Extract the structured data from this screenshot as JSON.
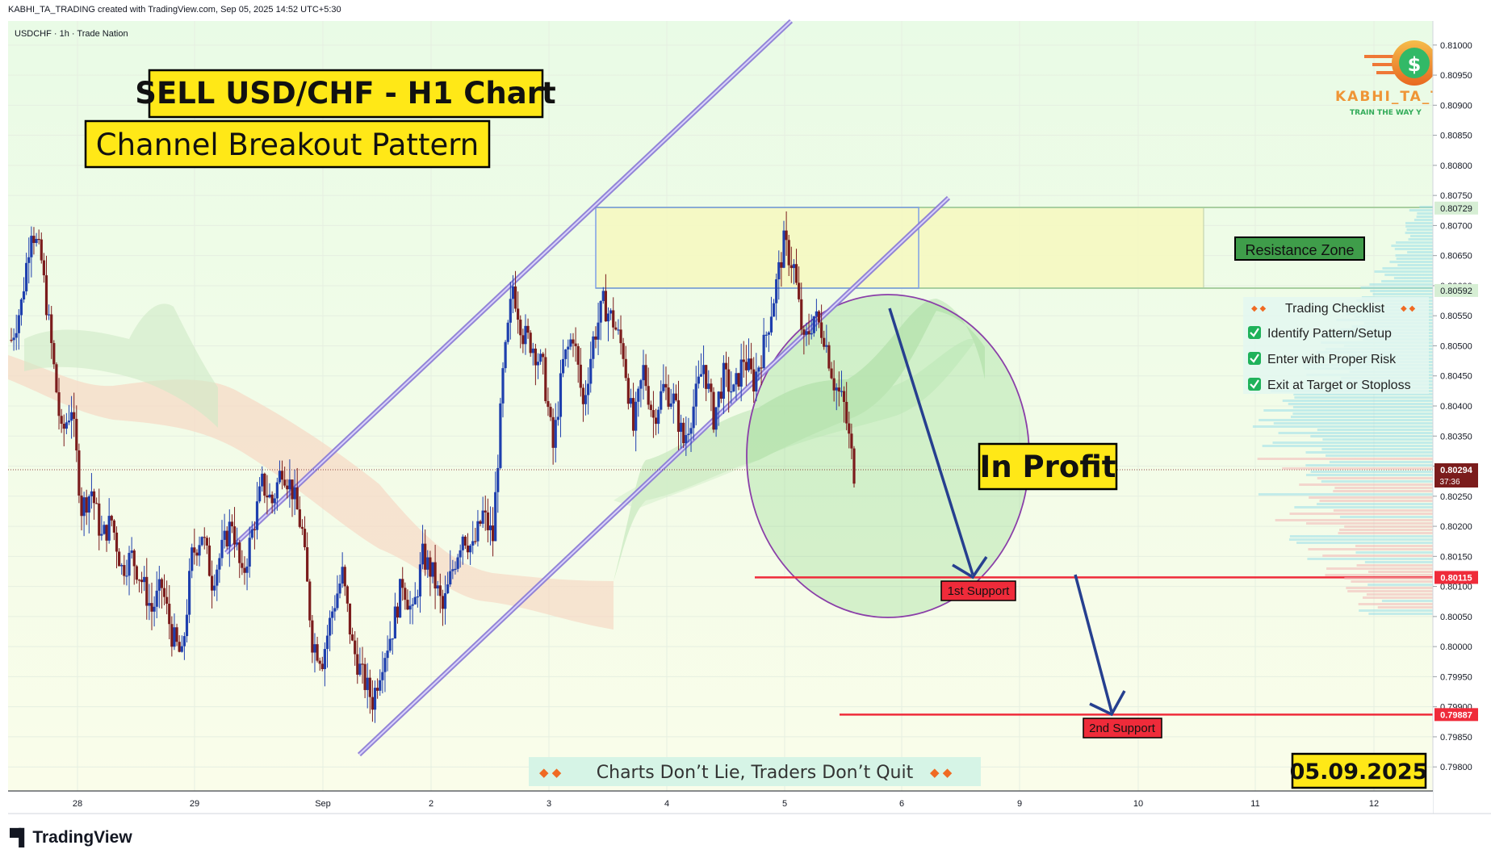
{
  "header": {
    "attribution": "KABHI_TA_TRADING created with TradingView.com, Sep 05, 2025 14:52 UTC+5:30",
    "symbol_line": "USDCHF · 1h · Trade Nation"
  },
  "branding": {
    "tradingview": "TradingView",
    "watermark_name": "KABHI_TA_T",
    "watermark_tag": "TRAIN THE WAY Y",
    "dollar": "$"
  },
  "annotations": {
    "title": "SELL USD/CHF - H1 Chart",
    "subtitle": "Channel Breakout Pattern",
    "in_profit": "In Profit",
    "resistance": "Resistance Zone",
    "support1": "1st Support",
    "support2": "2nd Support",
    "motto": "Charts Don’t Lie, Traders Don’t Quit",
    "date": "05.09.2025"
  },
  "checklist": {
    "title": "Trading Checklist",
    "items": [
      "Identify Pattern/Setup",
      "Enter with Proper Risk",
      "Exit at Target or Stoploss"
    ]
  },
  "colors": {
    "bull": "#1e3fae",
    "bear": "#7b1c1c",
    "support_line": "#ef2b3a",
    "channel": "#8878d6",
    "label_yellow": "#ffe817",
    "resistance_green": "#3f9d4a"
  },
  "chart_data": {
    "type": "candlestick",
    "symbol": "USDCHF",
    "timeframe": "1h",
    "broker": "Trade Nation",
    "x_ticks": [
      "28",
      "29",
      "Sep",
      "2",
      "3",
      "4",
      "5",
      "6",
      "9",
      "10",
      "11",
      "12"
    ],
    "y_ticks": [
      "0.81000",
      "0.80950",
      "0.80900",
      "0.80850",
      "0.80800",
      "0.80750",
      "0.80700",
      "0.80650",
      "0.80600",
      "0.80550",
      "0.80500",
      "0.80450",
      "0.80400",
      "0.80350",
      "0.80300",
      "0.80250",
      "0.80200",
      "0.80150",
      "0.80100",
      "0.80050",
      "0.80000",
      "0.79950",
      "0.79900",
      "0.79850",
      "0.79800"
    ],
    "ylim": [
      0.7976,
      0.8104
    ],
    "price_labels": {
      "current": "0.80294",
      "countdown": "37:36",
      "resistance_top": "0.80729",
      "resistance_bottom": "0.80592",
      "support1": "0.80115",
      "support2": "0.79887"
    },
    "levels": {
      "current": 0.80294,
      "resistance_top": 0.80729,
      "resistance_bottom": 0.80592,
      "support1": 0.80115,
      "support2": 0.79887
    },
    "path_points": [
      0.8051,
      0.8057,
      0.807,
      0.8064,
      0.805,
      0.8035,
      0.804,
      0.8023,
      0.8026,
      0.8018,
      0.8021,
      0.8013,
      0.8015,
      0.8011,
      0.8006,
      0.801,
      0.8002,
      0.7998,
      0.8015,
      0.8019,
      0.8011,
      0.8016,
      0.8021,
      0.8011,
      0.8019,
      0.8027,
      0.8024,
      0.803,
      0.8026,
      0.8019,
      0.8001,
      0.7998,
      0.8006,
      0.8012,
      0.8,
      0.7995,
      0.7991,
      0.7998,
      0.8003,
      0.8011,
      0.8005,
      0.8015,
      0.8012,
      0.8006,
      0.8013,
      0.8019,
      0.8016,
      0.8022,
      0.8018,
      0.8045,
      0.806,
      0.8052,
      0.805,
      0.8046,
      0.8033,
      0.8047,
      0.8052,
      0.804,
      0.8051,
      0.8057,
      0.8054,
      0.8049,
      0.8036,
      0.8046,
      0.8038,
      0.8043,
      0.8041,
      0.8034,
      0.804,
      0.8047,
      0.8038,
      0.8045,
      0.8042,
      0.8048,
      0.8044,
      0.805,
      0.8058,
      0.8067,
      0.8063,
      0.805,
      0.8055,
      0.8052,
      0.8044,
      0.804,
      0.8029
    ]
  }
}
